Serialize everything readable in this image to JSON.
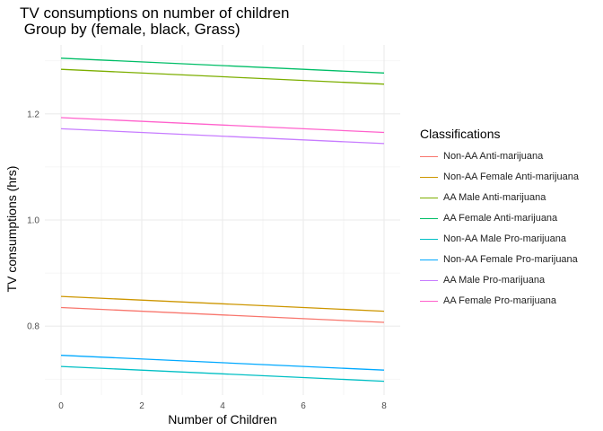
{
  "chart_data": {
    "type": "line",
    "title": "TV consumptions on number of children",
    "subtitle": " Group by (female, black, Grass)",
    "xlabel": "Number of Children",
    "ylabel": "TV consumptions (hrs)",
    "xlim": [
      -0.4,
      8.4
    ],
    "ylim": [
      0.67,
      1.33
    ],
    "x_ticks": [
      0,
      2,
      4,
      6,
      8
    ],
    "y_ticks": [
      0.8,
      1.0,
      1.2
    ],
    "x_tick_labels": [
      "0",
      "2",
      "4",
      "6",
      "8"
    ],
    "y_tick_labels": [
      "0.8",
      "1.0",
      "1.2"
    ],
    "grid": true,
    "legend_title": "Classifications",
    "legend_position": "right",
    "x": [
      0,
      8
    ],
    "series": [
      {
        "name": "Non-AA Anti-marijuana",
        "color": "#F8766D",
        "values": [
          0.835,
          0.807
        ]
      },
      {
        "name": "Non-AA Female Anti-marijuana",
        "color": "#CD9600",
        "values": [
          0.856,
          0.828
        ]
      },
      {
        "name": "AA Male Anti-marijuana",
        "color": "#7CAE00",
        "values": [
          1.284,
          1.256
        ]
      },
      {
        "name": "AA Female Anti-marijuana",
        "color": "#00BE67",
        "values": [
          1.305,
          1.277
        ]
      },
      {
        "name": "Non-AA Male Pro-marijuana",
        "color": "#00BFC4",
        "values": [
          0.724,
          0.696
        ]
      },
      {
        "name": "Non-AA Female Pro-marijuana",
        "color": "#00A9FF",
        "values": [
          0.745,
          0.717
        ]
      },
      {
        "name": "AA Male Pro-marijuana",
        "color": "#C77CFF",
        "values": [
          1.172,
          1.144
        ]
      },
      {
        "name": "AA Female Pro-marijuana",
        "color": "#FF61CC",
        "values": [
          1.193,
          1.165
        ]
      }
    ]
  }
}
